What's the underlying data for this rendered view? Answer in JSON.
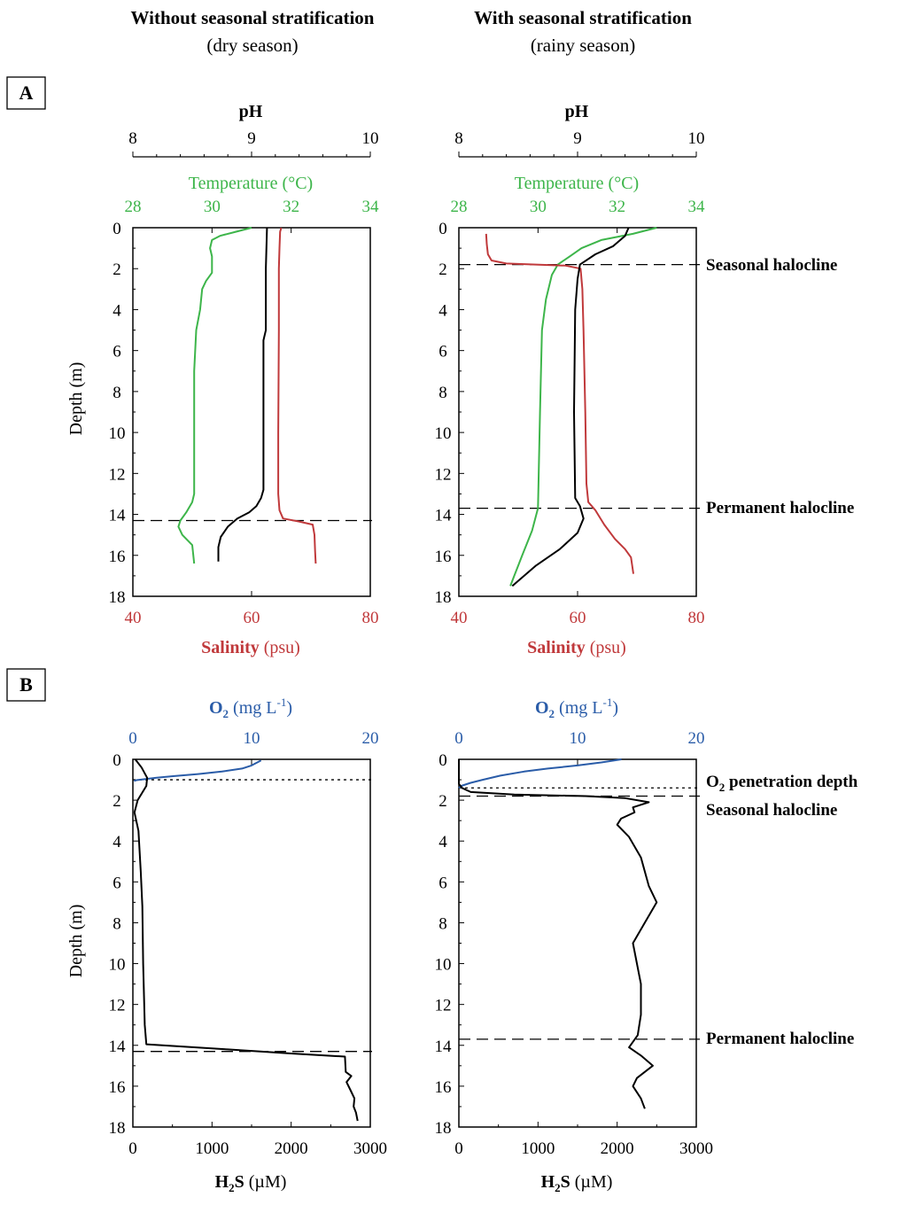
{
  "colors": {
    "temperature": "#3db54a",
    "salinity": "#c0393b",
    "ph": "#000000",
    "o2": "#2a5ca8",
    "h2s": "#000000"
  },
  "columns": [
    {
      "title": "Without seasonal stratification",
      "subtitle": "(dry season)"
    },
    {
      "title": "With seasonal stratification",
      "subtitle": "(rainy season)"
    }
  ],
  "panel_labels": {
    "a": "A",
    "b": "B"
  },
  "axis_titles": {
    "ph": "pH",
    "temperature": "Temperature (°C)",
    "salinity_bold": "Salinity",
    "salinity_unit": " (psu)",
    "depth": "Depth  (m)",
    "o2_main": "O",
    "o2_sub": "2",
    "o2_unit": " (mg L",
    "o2_sup": "-1",
    "o2_close": ")",
    "h2s_main": "H",
    "h2s_sub": "2",
    "h2s_rest": "S",
    "h2s_unit": " (µM)"
  },
  "annotations": {
    "seasonal_halocline": "Seasonal halocline",
    "permanent_halocline": "Permanent halocline",
    "o2_penetration_main": "O",
    "o2_penetration_sub": "2",
    "o2_penetration_rest": " penetration depth"
  },
  "chart_data": [
    {
      "type": "line",
      "id": "A-dry",
      "title": "",
      "y_axis": {
        "label": "Depth  (m)",
        "range": [
          0,
          18
        ],
        "inverted": true,
        "ticks": [
          0,
          2,
          4,
          6,
          8,
          10,
          12,
          14,
          16,
          18
        ]
      },
      "x_axes": {
        "ph": {
          "range": [
            8,
            10
          ],
          "ticks": [
            8,
            9,
            10
          ]
        },
        "temperature": {
          "range": [
            28,
            34
          ],
          "ticks": [
            28,
            30,
            32,
            34
          ]
        },
        "salinity": {
          "range": [
            40,
            80
          ],
          "ticks": [
            40,
            60,
            80
          ]
        }
      },
      "halocline_lines": {
        "permanent": 14.3
      },
      "series": [
        {
          "name": "Temperature",
          "axis": "temperature",
          "points": [
            [
              31.0,
              0
            ],
            [
              30.6,
              0.2
            ],
            [
              30.2,
              0.4
            ],
            [
              30.0,
              0.6
            ],
            [
              29.95,
              1.0
            ],
            [
              30.0,
              1.4
            ],
            [
              30.0,
              2.2
            ],
            [
              29.85,
              2.6
            ],
            [
              29.75,
              3.0
            ],
            [
              29.7,
              4.0
            ],
            [
              29.6,
              5.0
            ],
            [
              29.55,
              7.0
            ],
            [
              29.55,
              13.0
            ],
            [
              29.5,
              13.4
            ],
            [
              29.35,
              13.9
            ],
            [
              29.2,
              14.3
            ],
            [
              29.15,
              14.6
            ],
            [
              29.25,
              15.0
            ],
            [
              29.5,
              15.5
            ],
            [
              29.55,
              16.4
            ]
          ]
        },
        {
          "name": "Salinity",
          "axis": "salinity",
          "points": [
            [
              65.0,
              0
            ],
            [
              64.8,
              0.2
            ],
            [
              64.7,
              1.0
            ],
            [
              64.6,
              2.0
            ],
            [
              64.6,
              5.0
            ],
            [
              64.5,
              10.0
            ],
            [
              64.5,
              13.0
            ],
            [
              64.7,
              13.8
            ],
            [
              65.3,
              14.2
            ],
            [
              68.0,
              14.35
            ],
            [
              70.3,
              14.5
            ],
            [
              70.6,
              15.0
            ],
            [
              70.7,
              15.8
            ],
            [
              70.8,
              16.4
            ]
          ]
        },
        {
          "name": "pH",
          "axis": "ph",
          "points": [
            [
              9.13,
              0
            ],
            [
              9.12,
              2.0
            ],
            [
              9.12,
              5.0
            ],
            [
              9.1,
              5.5
            ],
            [
              9.1,
              12.8
            ],
            [
              9.08,
              13.2
            ],
            [
              9.04,
              13.6
            ],
            [
              8.98,
              13.9
            ],
            [
              8.88,
              14.2
            ],
            [
              8.8,
              14.6
            ],
            [
              8.74,
              15.1
            ],
            [
              8.72,
              15.6
            ],
            [
              8.72,
              16.3
            ]
          ]
        }
      ]
    },
    {
      "type": "line",
      "id": "A-rainy",
      "title": "",
      "y_axis": {
        "label": "",
        "range": [
          0,
          18
        ],
        "inverted": true,
        "ticks": [
          0,
          2,
          4,
          6,
          8,
          10,
          12,
          14,
          16,
          18
        ]
      },
      "x_axes": {
        "ph": {
          "range": [
            8,
            10
          ],
          "ticks": [
            8,
            9,
            10
          ]
        },
        "temperature": {
          "range": [
            28,
            34
          ],
          "ticks": [
            28,
            30,
            32,
            34
          ]
        },
        "salinity": {
          "range": [
            40,
            80
          ],
          "ticks": [
            40,
            60,
            80
          ]
        }
      },
      "halocline_lines": {
        "seasonal": 1.8,
        "permanent": 13.7
      },
      "series": [
        {
          "name": "Temperature",
          "axis": "temperature",
          "points": [
            [
              33.0,
              0
            ],
            [
              32.4,
              0.3
            ],
            [
              31.6,
              0.6
            ],
            [
              31.1,
              1.0
            ],
            [
              30.8,
              1.4
            ],
            [
              30.5,
              1.8
            ],
            [
              30.35,
              2.3
            ],
            [
              30.2,
              3.5
            ],
            [
              30.1,
              5.0
            ],
            [
              30.05,
              9.0
            ],
            [
              30.0,
              13.7
            ],
            [
              29.85,
              14.8
            ],
            [
              29.6,
              16.0
            ],
            [
              29.4,
              17.0
            ],
            [
              29.3,
              17.5
            ]
          ]
        },
        {
          "name": "Salinity",
          "axis": "salinity",
          "points": [
            [
              44.6,
              0.3
            ],
            [
              44.7,
              0.8
            ],
            [
              44.9,
              1.3
            ],
            [
              45.5,
              1.6
            ],
            [
              48.0,
              1.75
            ],
            [
              53.0,
              1.8
            ],
            [
              58.0,
              1.85
            ],
            [
              60.5,
              2.0
            ],
            [
              60.8,
              3.0
            ],
            [
              61.0,
              5.0
            ],
            [
              61.3,
              9.0
            ],
            [
              61.5,
              12.5
            ],
            [
              61.8,
              13.4
            ],
            [
              63.0,
              13.8
            ],
            [
              64.5,
              14.5
            ],
            [
              66.3,
              15.2
            ],
            [
              68.0,
              15.7
            ],
            [
              69.0,
              16.1
            ],
            [
              69.4,
              16.9
            ]
          ]
        },
        {
          "name": "pH",
          "axis": "ph",
          "points": [
            [
              9.43,
              0
            ],
            [
              9.4,
              0.4
            ],
            [
              9.3,
              0.9
            ],
            [
              9.15,
              1.3
            ],
            [
              9.02,
              1.8
            ],
            [
              9.0,
              2.5
            ],
            [
              8.98,
              4.0
            ],
            [
              8.97,
              9.0
            ],
            [
              8.98,
              13.2
            ],
            [
              9.02,
              13.6
            ],
            [
              9.05,
              14.2
            ],
            [
              9.0,
              14.9
            ],
            [
              8.85,
              15.7
            ],
            [
              8.65,
              16.5
            ],
            [
              8.45,
              17.5
            ]
          ]
        }
      ]
    },
    {
      "type": "line",
      "id": "B-dry",
      "title": "",
      "y_axis": {
        "label": "Depth  (m)",
        "range": [
          0,
          18
        ],
        "inverted": true,
        "ticks": [
          0,
          2,
          4,
          6,
          8,
          10,
          12,
          14,
          16,
          18
        ]
      },
      "x_axes": {
        "o2": {
          "range": [
            0,
            20
          ],
          "ticks": [
            0,
            10,
            20
          ]
        },
        "h2s": {
          "range": [
            0,
            3000
          ],
          "ticks": [
            0,
            1000,
            2000,
            3000
          ]
        }
      },
      "o2_penetration_depth": 1.0,
      "halocline_lines": {
        "permanent": 14.3
      },
      "series": [
        {
          "name": "O2",
          "axis": "o2",
          "points": [
            [
              10.8,
              0.05
            ],
            [
              10.0,
              0.3
            ],
            [
              9.2,
              0.45
            ],
            [
              7.5,
              0.6
            ],
            [
              5.5,
              0.72
            ],
            [
              3.5,
              0.82
            ],
            [
              2.0,
              0.9
            ],
            [
              1.0,
              0.97
            ],
            [
              0.3,
              1.02
            ],
            [
              0.1,
              1.06
            ]
          ]
        },
        {
          "name": "H2S",
          "axis": "h2s",
          "points": [
            [
              30,
              0
            ],
            [
              110,
              0.4
            ],
            [
              180,
              0.9
            ],
            [
              170,
              1.3
            ],
            [
              60,
              2.0
            ],
            [
              20,
              2.6
            ],
            [
              70,
              3.5
            ],
            [
              100,
              5.5
            ],
            [
              120,
              7.2
            ],
            [
              130,
              10.0
            ],
            [
              150,
              13.0
            ],
            [
              170,
              13.95
            ],
            [
              1200,
              14.2
            ],
            [
              2000,
              14.4
            ],
            [
              2680,
              14.55
            ],
            [
              2690,
              15.3
            ],
            [
              2760,
              15.5
            ],
            [
              2700,
              15.8
            ],
            [
              2750,
              16.2
            ],
            [
              2800,
              16.6
            ],
            [
              2790,
              17.0
            ],
            [
              2820,
              17.3
            ],
            [
              2840,
              17.7
            ]
          ]
        }
      ]
    },
    {
      "type": "line",
      "id": "B-rainy",
      "title": "",
      "y_axis": {
        "label": "",
        "range": [
          0,
          18
        ],
        "inverted": true,
        "ticks": [
          0,
          2,
          4,
          6,
          8,
          10,
          12,
          14,
          16,
          18
        ]
      },
      "x_axes": {
        "o2": {
          "range": [
            0,
            20
          ],
          "ticks": [
            0,
            10,
            20
          ]
        },
        "h2s": {
          "range": [
            0,
            3000
          ],
          "ticks": [
            0,
            1000,
            2000,
            3000
          ]
        }
      },
      "o2_penetration_depth": 1.4,
      "halocline_lines": {
        "seasonal": 1.8,
        "permanent": 13.7
      },
      "series": [
        {
          "name": "O2",
          "axis": "o2",
          "points": [
            [
              13.7,
              0
            ],
            [
              12.0,
              0.15
            ],
            [
              10.0,
              0.3
            ],
            [
              7.5,
              0.45
            ],
            [
              5.5,
              0.6
            ],
            [
              3.5,
              0.8
            ],
            [
              2.0,
              1.0
            ],
            [
              1.0,
              1.15
            ],
            [
              0.2,
              1.3
            ],
            [
              0.0,
              1.4
            ]
          ]
        },
        {
          "name": "H2S",
          "axis": "h2s",
          "points": [
            [
              0,
              0
            ],
            [
              0,
              1.2
            ],
            [
              40,
              1.4
            ],
            [
              150,
              1.6
            ],
            [
              700,
              1.72
            ],
            [
              1600,
              1.8
            ],
            [
              2100,
              1.9
            ],
            [
              2400,
              2.1
            ],
            [
              2200,
              2.35
            ],
            [
              2220,
              2.6
            ],
            [
              2050,
              2.9
            ],
            [
              2000,
              3.2
            ],
            [
              2150,
              3.8
            ],
            [
              2300,
              4.8
            ],
            [
              2400,
              6.2
            ],
            [
              2500,
              7.0
            ],
            [
              2350,
              8.0
            ],
            [
              2200,
              9.0
            ],
            [
              2250,
              10.0
            ],
            [
              2300,
              11.0
            ],
            [
              2300,
              12.5
            ],
            [
              2260,
              13.5
            ],
            [
              2150,
              14.1
            ],
            [
              2300,
              14.5
            ],
            [
              2450,
              15.0
            ],
            [
              2250,
              15.6
            ],
            [
              2200,
              16.0
            ],
            [
              2300,
              16.6
            ],
            [
              2350,
              17.1
            ]
          ]
        }
      ]
    }
  ]
}
